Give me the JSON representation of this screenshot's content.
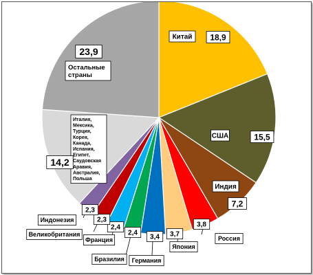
{
  "chart_data": {
    "type": "pie",
    "title": "",
    "unit": "",
    "slices": [
      {
        "name": "Китай",
        "value": 18.9,
        "value_label": "18,9",
        "color": "#FFC000"
      },
      {
        "name": "США",
        "value": 15.5,
        "value_label": "15,5",
        "color": "#5E5E2C"
      },
      {
        "name": "Индия",
        "value": 7.2,
        "value_label": "7,2",
        "color": "#8E4712"
      },
      {
        "name": "Россия",
        "value": 3.8,
        "value_label": "3,8",
        "color": "#FF0000"
      },
      {
        "name": "Япония",
        "value": 3.7,
        "value_label": "3,7",
        "color": "#FFCB7C"
      },
      {
        "name": "Германия",
        "value": 3.4,
        "value_label": "3,4",
        "color": "#0070C0"
      },
      {
        "name": "Бразилия",
        "value": 2.4,
        "value_label": "2,4",
        "color": "#00A650"
      },
      {
        "name": "Франция",
        "value": 2.4,
        "value_label": "2,4",
        "color": "#00B0F0"
      },
      {
        "name": "Великобритания",
        "value": 2.3,
        "value_label": "2,3",
        "color": "#C00000"
      },
      {
        "name": "Индонезия",
        "value": 2.3,
        "value_label": "2,3",
        "color": "#8064A2"
      },
      {
        "name": "Италия, Мексика, Турция, Корея, Канада, Испания, Египет, Саудовская Аравия, Австралия, Польша",
        "value": 14.2,
        "value_label": "14,2",
        "color": "#D9D9D9"
      },
      {
        "name": "Остальные страны",
        "value": 23.9,
        "value_label": "23,9",
        "color": "#A6A6A6"
      }
    ],
    "group_label_lines": [
      "Италия,",
      "Мексика,",
      "Турция,",
      "Корея,",
      "Канада,",
      "Испания,",
      "Египет,",
      "Саудовская",
      "Аравия,",
      "Австралия,",
      "Польша"
    ],
    "other_label_lines": [
      "Остальные",
      "страны"
    ]
  }
}
